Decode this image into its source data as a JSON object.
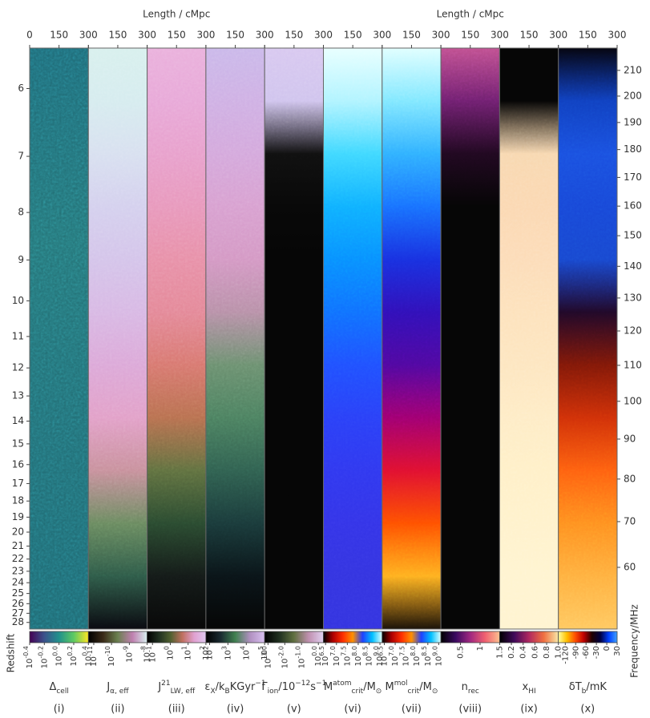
{
  "chart_data": {
    "type": "lightcone",
    "x_labels": [
      "Length / cMpc",
      "Length / cMpc"
    ],
    "xlim": [
      0,
      300
    ],
    "xticks": [
      0,
      150,
      300
    ],
    "y_label": "Redshift",
    "ylim": [
      5.49,
      28.76
    ],
    "yticks": [
      6,
      7,
      8,
      9,
      10,
      11,
      12,
      13,
      14,
      15,
      16,
      17,
      18,
      19,
      20,
      21,
      22,
      23,
      24,
      25,
      26,
      27,
      28
    ],
    "y2_label": "Frequency/MHz",
    "y2ticks": [
      60,
      70,
      80,
      90,
      100,
      110,
      120,
      130,
      140,
      150,
      160,
      170,
      180,
      190,
      200,
      210
    ],
    "panels": [
      {
        "id": "(i)",
        "label": [
          {
            "text": "Δ"
          },
          {
            "sub": "cell"
          }
        ],
        "colors": [
          "#1f6b78",
          "#257478",
          "#226e76",
          "#1f6a74"
        ],
        "colorbar": {
          "colors": [
            "#440154",
            "#3b528b",
            "#21918c",
            "#5ec962",
            "#fde725"
          ],
          "clim": [
            -0.4,
            0.4
          ],
          "ticks": [
            {
              "value": -0.4,
              "label": "10",
              "exp": "-0.4"
            },
            {
              "value": -0.2,
              "label": "10",
              "exp": "-0.2"
            },
            {
              "value": 0.0,
              "label": "10",
              "exp": "0.0"
            },
            {
              "value": 0.2,
              "label": "10",
              "exp": "0.2"
            },
            {
              "value": 0.4,
              "label": "10",
              "exp": "0.4"
            }
          ]
        }
      },
      {
        "id": "(ii)",
        "label": [
          {
            "text": "J"
          },
          {
            "sub": "α, eff"
          }
        ],
        "colors": [
          "#d8f0ee",
          "#d6ecef",
          "#d8e0f0",
          "#d4d0ee",
          "#d4c4ea",
          "#d8b8e4",
          "#dca8d8",
          "#e2a0c8",
          "#c8909c",
          "#6a8a60",
          "#2e5a48",
          "#0a0a10"
        ],
        "colorbar": {
          "colors": [
            "#000000",
            "#3a2a18",
            "#6b8050",
            "#c080b0",
            "#d8f0f0"
          ],
          "clim": [
            -11.3,
            -8
          ],
          "ticks": [
            {
              "value": -11,
              "label": "10",
              "exp": "-11"
            },
            {
              "value": -10,
              "label": "10",
              "exp": "-10"
            },
            {
              "value": -9,
              "label": "10",
              "exp": "-9"
            },
            {
              "value": -8,
              "label": "10",
              "exp": "-8"
            }
          ]
        }
      },
      {
        "id": "(iii)",
        "label": [
          {
            "text": "J"
          },
          {
            "sup": "21"
          },
          {
            "sub": "LW, eff"
          }
        ],
        "colors": [
          "#eab0dc",
          "#e8a8d8",
          "#e8a0cc",
          "#e898bc",
          "#e890a8",
          "#e48898",
          "#d87870",
          "#b87050",
          "#607040",
          "#2a4a30",
          "#141a18",
          "#080808"
        ],
        "colorbar": {
          "colors": [
            "#000000",
            "#203020",
            "#506030",
            "#c07060",
            "#e0a0d0",
            "#e0c8f0"
          ],
          "clim": [
            -1.3,
            2
          ],
          "ticks": [
            {
              "value": -1,
              "label": "10",
              "exp": "-1"
            },
            {
              "value": 0,
              "label": "10",
              "exp": "0"
            },
            {
              "value": 1,
              "label": "10",
              "exp": "1"
            },
            {
              "value": 2,
              "label": "10",
              "exp": "2"
            }
          ]
        }
      },
      {
        "id": "(iv)",
        "label": [
          {
            "text": "ε"
          },
          {
            "sub": "X"
          },
          {
            "text": "/k"
          },
          {
            "sub": "B"
          },
          {
            "text": "KGyr"
          },
          {
            "sup": "−1"
          }
        ],
        "colors": [
          "#cab8ea",
          "#cfb0e4",
          "#d4a8dc",
          "#d8a0d0",
          "#d498c4",
          "#b890a8",
          "#6c9070",
          "#4c8060",
          "#306050",
          "#1a3a3a",
          "#0a1418",
          "#050505"
        ],
        "colorbar": {
          "colors": [
            "#000000",
            "#1a2a30",
            "#408050",
            "#b090c0",
            "#d8c0f0"
          ],
          "clim": [
            1.8,
            5
          ],
          "ticks": [
            {
              "value": 2,
              "label": "10",
              "exp": "2"
            },
            {
              "value": 3,
              "label": "10",
              "exp": "3"
            },
            {
              "value": 4,
              "label": "10",
              "exp": "4"
            },
            {
              "value": 5,
              "label": "10",
              "exp": "5"
            }
          ]
        }
      },
      {
        "id": "(v)",
        "label": [
          {
            "text": "Γ"
          },
          {
            "sub": "ion"
          },
          {
            "text": "/10"
          },
          {
            "sup": "−12"
          },
          {
            "text": "s"
          },
          {
            "sup": "−1"
          }
        ],
        "colors": [
          "#d8c8f0",
          "#d0c4ee",
          "#101010",
          "#080808",
          "#050505",
          "#050505",
          "#050505",
          "#050505",
          "#050505",
          "#050505",
          "#050505",
          "#050505"
        ],
        "colorbar": {
          "colors": [
            "#000000",
            "#203020",
            "#607040",
            "#c090b0",
            "#e0d0f0"
          ],
          "clim": [
            -3.2,
            0.3
          ],
          "ticks": [
            {
              "value": -3.0,
              "label": "10",
              "exp": "-3.0"
            },
            {
              "value": -2.0,
              "label": "10",
              "exp": "-2.0"
            },
            {
              "value": -1.0,
              "label": "10",
              "exp": "-1.0"
            },
            {
              "value": 0.0,
              "label": "10",
              "exp": "0.0"
            }
          ]
        }
      },
      {
        "id": "(vi)",
        "label": [
          {
            "text": "M"
          },
          {
            "sup": "atom"
          },
          {
            "sub": "crit"
          },
          {
            "text": "/M"
          },
          {
            "sub": "⊙"
          }
        ],
        "colors": [
          "#e8ffff",
          "#b0f4ff",
          "#40d8ff",
          "#10b0ff",
          "#0890ff",
          "#1070ff",
          "#2050ff",
          "#2a40f8",
          "#3038f0",
          "#3434e8",
          "#3434e0",
          "#3434e0"
        ],
        "colorbar": {
          "colors": [
            "#000000",
            "#b00000",
            "#ff3000",
            "#ff9000",
            "#2040ff",
            "#00c0ff",
            "#e0ffff"
          ],
          "clim": [
            6.4,
            9.1
          ],
          "ticks": [
            {
              "value": 6.5,
              "label": "10",
              "exp": "6.5"
            },
            {
              "value": 7.0,
              "label": "10",
              "exp": "7.0"
            },
            {
              "value": 7.5,
              "label": "10",
              "exp": "7.5"
            },
            {
              "value": 8.0,
              "label": "10",
              "exp": "8.0"
            },
            {
              "value": 8.5,
              "label": "10",
              "exp": "8.5"
            },
            {
              "value": 9.0,
              "label": "10",
              "exp": "9.0"
            }
          ]
        }
      },
      {
        "id": "(vii)",
        "label": [
          {
            "text": "M"
          },
          {
            "sup": "mol"
          },
          {
            "sub": "crit"
          },
          {
            "text": "/M"
          },
          {
            "sub": "⊙"
          }
        ],
        "colors": [
          "#e0ffff",
          "#80e8ff",
          "#30b0ff",
          "#1870ff",
          "#1830e0",
          "#3010b8",
          "#5008a0",
          "#a00070",
          "#e01030",
          "#ff5000",
          "#ffb020",
          "#1a1208"
        ],
        "colorbar": {
          "colors": [
            "#000000",
            "#b00000",
            "#ff3000",
            "#ff9000",
            "#2040ff",
            "#00c0ff",
            "#e0ffff"
          ],
          "clim": [
            6.4,
            9.1
          ],
          "ticks": [
            {
              "value": 6.5,
              "label": "10",
              "exp": "6.5"
            },
            {
              "value": 7.0,
              "label": "10",
              "exp": "7.0"
            },
            {
              "value": 7.5,
              "label": "10",
              "exp": "7.5"
            },
            {
              "value": 8.0,
              "label": "10",
              "exp": "8.0"
            },
            {
              "value": 8.5,
              "label": "10",
              "exp": "8.5"
            },
            {
              "value": 9.0,
              "label": "10",
              "exp": "9.0"
            }
          ]
        }
      },
      {
        "id": "(viii)",
        "label": [
          {
            "text": "n"
          },
          {
            "sub": "rec"
          }
        ],
        "colors": [
          "#c05090",
          "#702070",
          "#200820",
          "#050505",
          "#050505",
          "#050505",
          "#050505",
          "#050505",
          "#050505",
          "#050505",
          "#050505",
          "#050505"
        ],
        "colorbar": {
          "colors": [
            "#000000",
            "#3a0a60",
            "#a02880",
            "#f06070",
            "#fcc090"
          ],
          "clim": [
            0,
            1.5
          ],
          "ticks": [
            0.5,
            1,
            1.5
          ]
        }
      },
      {
        "id": "(ix)",
        "label": [
          {
            "text": "x"
          },
          {
            "sub": "HI"
          }
        ],
        "colors": [
          "#050505",
          "#050505",
          "#f8d8b0",
          "#fbd8b2",
          "#fcdcb8",
          "#fde2bc",
          "#fde6c0",
          "#feecc6",
          "#fff0c8",
          "#fff2cc",
          "#fff4d0",
          "#fff4d0"
        ],
        "colorbar": {
          "colors": [
            "#000000",
            "#400a5a",
            "#b02860",
            "#f07040",
            "#f8e8a8"
          ],
          "clim": [
            0,
            1.0
          ],
          "ticks": [
            0.2,
            0.4,
            0.6,
            0.8,
            {
              "value": 1,
              "label": "1.0"
            }
          ]
        }
      },
      {
        "id": "(x)",
        "label": [
          {
            "text": "δT"
          },
          {
            "sub": "b"
          },
          {
            "text": "/mK"
          }
        ],
        "colors": [
          "#050510",
          "#1040c0",
          "#1a50e0",
          "#1848d8",
          "#1848d0",
          "#200828",
          "#801808",
          "#d03008",
          "#ff6010",
          "#ff9020",
          "#ffb040",
          "#ffc860"
        ],
        "colorbar": {
          "colors": [
            "#ffffa0",
            "#ffc000",
            "#ff5000",
            "#c00000",
            "#200000",
            "#000040",
            "#0040ff",
            "#40a0ff"
          ],
          "clim": [
            -140,
            30
          ],
          "ticks": [
            -120,
            -90,
            -60,
            -30,
            0,
            30
          ]
        }
      }
    ]
  }
}
